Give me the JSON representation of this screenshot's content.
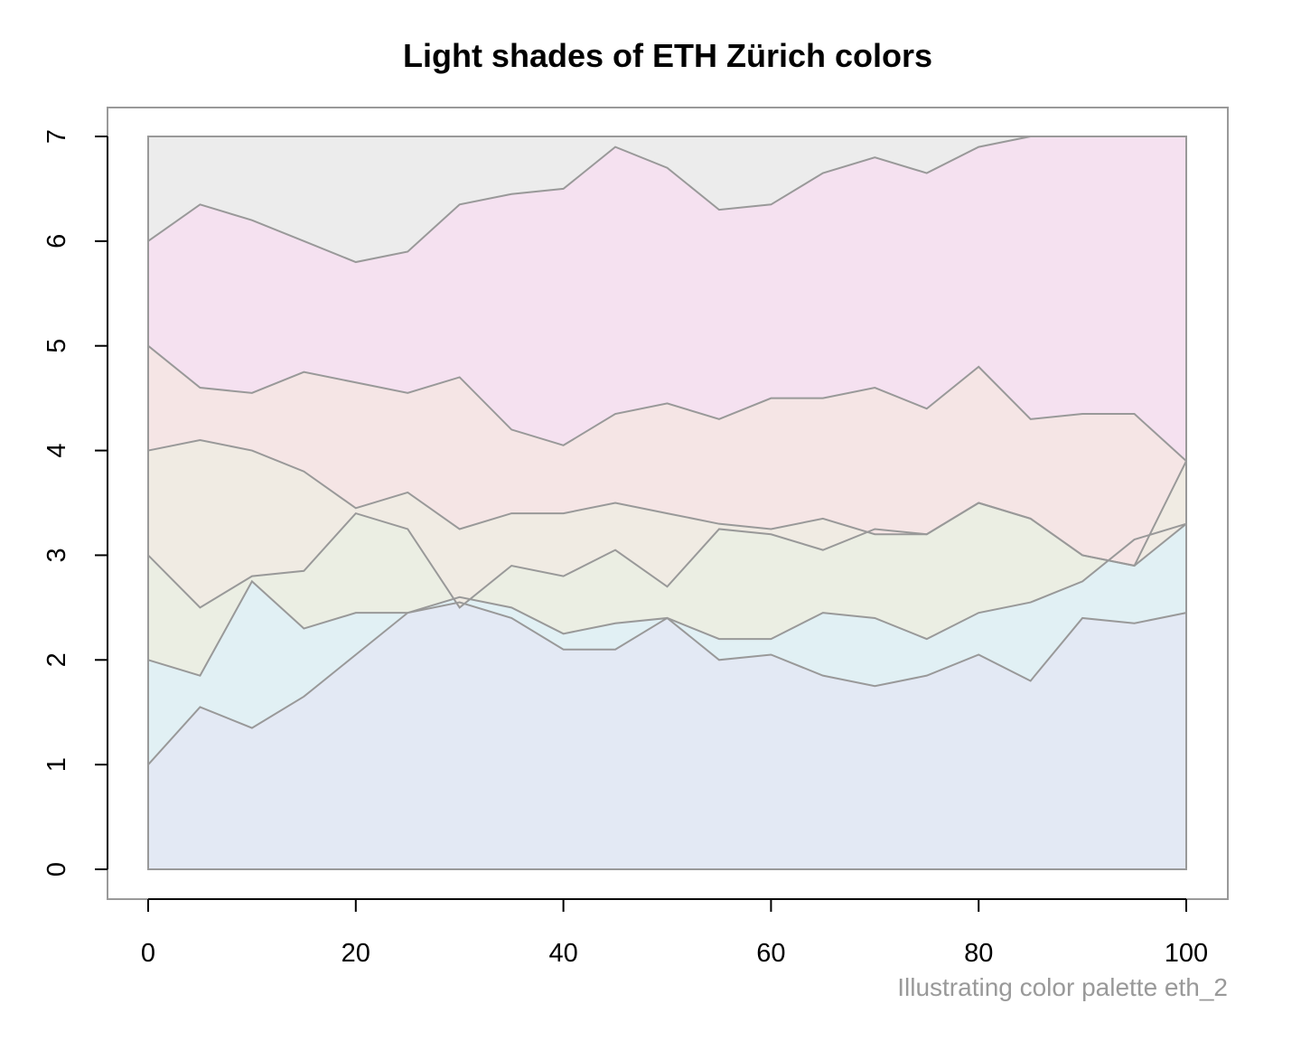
{
  "chart_data": {
    "type": "area",
    "stacked": true,
    "title": "Light shades of ETH Zürich colors",
    "caption": "Illustrating color palette eth_2",
    "xlabel": "",
    "ylabel": "",
    "xlim": [
      0,
      100
    ],
    "ylim": [
      0,
      7
    ],
    "x_ticks": [
      0,
      20,
      40,
      60,
      80,
      100
    ],
    "y_ticks": [
      0,
      1,
      2,
      3,
      4,
      5,
      6,
      7
    ],
    "grid": false,
    "legend": "none",
    "line_color": "#999999",
    "frame_color": "#999999",
    "x": [
      0,
      5,
      10,
      15,
      20,
      25,
      30,
      35,
      40,
      45,
      50,
      55,
      60,
      65,
      70,
      75,
      80,
      85,
      90,
      95,
      100
    ],
    "boundaries": [
      {
        "level": 1,
        "values": [
          1.0,
          1.55,
          1.35,
          1.65,
          2.05,
          2.45,
          2.55,
          2.4,
          2.1,
          2.1,
          2.4,
          2.0,
          2.05,
          1.85,
          1.75,
          1.85,
          2.05,
          1.8,
          2.4,
          2.35,
          2.45
        ]
      },
      {
        "level": 2,
        "values": [
          2.0,
          1.85,
          2.75,
          2.3,
          2.45,
          2.45,
          2.6,
          2.5,
          2.25,
          2.35,
          2.4,
          2.2,
          2.2,
          2.45,
          2.4,
          2.2,
          2.45,
          2.55,
          2.75,
          3.15,
          3.3
        ]
      },
      {
        "level": 3,
        "values": [
          3.0,
          2.5,
          2.8,
          2.85,
          3.4,
          3.25,
          2.5,
          2.9,
          2.8,
          3.05,
          2.7,
          3.25,
          3.2,
          3.05,
          3.25,
          3.2,
          3.5,
          3.35,
          3.0,
          2.9,
          3.3
        ]
      },
      {
        "level": 4,
        "values": [
          4.0,
          4.1,
          4.0,
          3.8,
          3.45,
          3.6,
          3.25,
          3.4,
          3.4,
          3.5,
          3.4,
          3.3,
          3.25,
          3.35,
          3.2,
          3.2,
          3.5,
          3.35,
          3.0,
          2.9,
          3.9
        ]
      },
      {
        "level": 5,
        "values": [
          5.0,
          4.6,
          4.55,
          4.75,
          4.65,
          4.55,
          4.7,
          4.2,
          4.05,
          4.35,
          4.45,
          4.3,
          4.5,
          4.5,
          4.6,
          4.4,
          4.8,
          4.3,
          4.35,
          4.35,
          3.9
        ]
      },
      {
        "level": 6,
        "values": [
          6.0,
          6.35,
          6.2,
          6.0,
          5.8,
          5.9,
          6.35,
          6.45,
          6.5,
          6.9,
          6.7,
          6.3,
          6.35,
          6.65,
          6.8,
          6.65,
          6.9,
          7.0,
          7.0,
          7.0,
          7.0
        ]
      }
    ],
    "series": [
      {
        "color": "#e3e9f4"
      },
      {
        "color": "#e1f0f4"
      },
      {
        "color": "#ebeee3"
      },
      {
        "color": "#f0ebe3"
      },
      {
        "color": "#f5e5e5"
      },
      {
        "color": "#f5e1f0"
      },
      {
        "color": "#ececec"
      }
    ]
  }
}
